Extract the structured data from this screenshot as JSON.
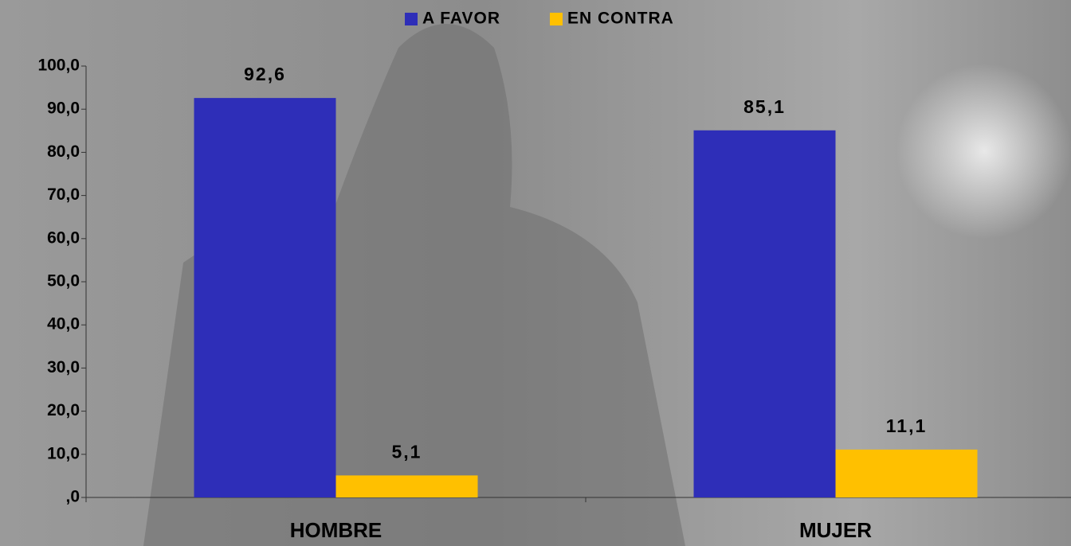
{
  "chart_data": {
    "type": "bar",
    "categories": [
      "HOMBRE",
      "MUJER"
    ],
    "series": [
      {
        "name": "A FAVOR",
        "color": "#2e2eb8",
        "values": [
          92.6,
          85.1
        ],
        "value_labels": [
          "92,6",
          "85,1"
        ]
      },
      {
        "name": "EN CONTRA",
        "color": "#ffc000",
        "values": [
          5.1,
          11.1
        ],
        "value_labels": [
          "5,1",
          "11,1"
        ]
      }
    ],
    "ylim": [
      0,
      100
    ],
    "yticks": [
      {
        "value": 0,
        "label": ",0"
      },
      {
        "value": 10,
        "label": "10,0"
      },
      {
        "value": 20,
        "label": "20,0"
      },
      {
        "value": 30,
        "label": "30,0"
      },
      {
        "value": 40,
        "label": "40,0"
      },
      {
        "value": 50,
        "label": "50,0"
      },
      {
        "value": 60,
        "label": "60,0"
      },
      {
        "value": 70,
        "label": "70,0"
      },
      {
        "value": 80,
        "label": "80,0"
      },
      {
        "value": 90,
        "label": "90,0"
      },
      {
        "value": 100,
        "label": "100,0"
      }
    ],
    "legend": "top"
  }
}
